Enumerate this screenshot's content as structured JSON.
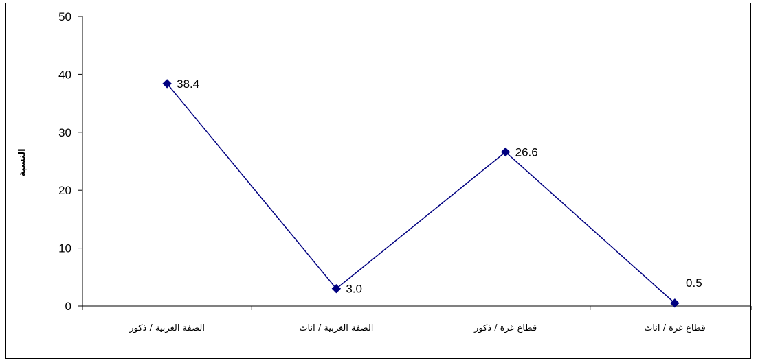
{
  "chart_data": {
    "type": "line",
    "title": "",
    "xlabel": "",
    "ylabel": "النسبة",
    "categories": [
      "الضفة الغربية / ذكور",
      "الضفة الغربية / اناث",
      "قطاع غزة / ذكور",
      "قطاع غزة / اناث"
    ],
    "series": [
      {
        "values": [
          38.4,
          3.0,
          26.6,
          0.5
        ],
        "labels": [
          "38.4",
          "3.0",
          "26.6",
          "0.5"
        ],
        "color": "#000080"
      }
    ],
    "ylim": [
      0,
      50
    ],
    "yticks": [
      0,
      10,
      20,
      30,
      40,
      50
    ],
    "grid": false,
    "legend": "none",
    "marker": "diamond"
  }
}
